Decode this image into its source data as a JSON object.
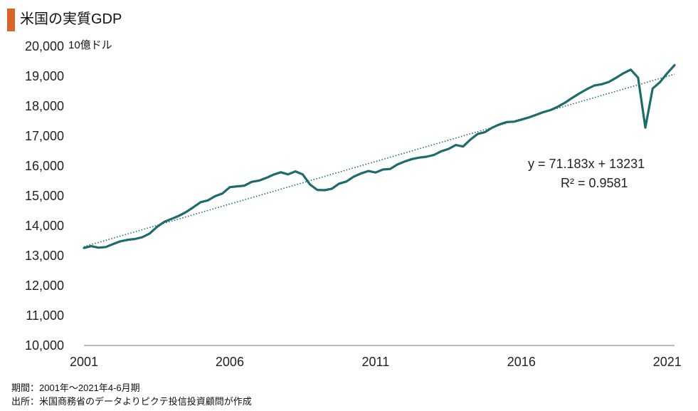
{
  "header": {
    "title": "米国の実質GDP",
    "accent_color": "#d8642a"
  },
  "unit_label": "10億ドル",
  "notes": {
    "period": "期間：2001年～2021年4-6月期",
    "source": "出所：米国商務省のデータよりピクテ投信投資顧問が作成"
  },
  "chart_data": {
    "type": "line",
    "title": "米国の実質GDP",
    "ylabel": "10億ドル",
    "xlabel": "",
    "ylim": [
      10000,
      20000
    ],
    "xlim": [
      2001,
      2021.25
    ],
    "y_ticks": [
      10000,
      11000,
      12000,
      13000,
      14000,
      15000,
      16000,
      17000,
      18000,
      19000,
      20000
    ],
    "y_tick_labels": [
      "10,000",
      "11,000",
      "12,000",
      "13,000",
      "14,000",
      "15,000",
      "16,000",
      "17,000",
      "18,000",
      "19,000",
      "20,000"
    ],
    "x_ticks": [
      2001,
      2006,
      2011,
      2016,
      2021
    ],
    "x_tick_labels": [
      "2001",
      "2006",
      "2011",
      "2016",
      "2021"
    ],
    "grid": false,
    "line_color": "#1d6b6b",
    "trend_color": "#1d6b6b",
    "trendline": {
      "equation": "y = 71.183x + 13231",
      "r_squared": "R² = 0.9581",
      "slope": 71.183,
      "intercept": 13231
    },
    "series": [
      {
        "x": [
          "2001Q1",
          "2001Q2",
          "2001Q3",
          "2001Q4",
          "2002Q1",
          "2002Q2",
          "2002Q3",
          "2002Q4",
          "2003Q1",
          "2003Q2",
          "2003Q3",
          "2003Q4",
          "2004Q1",
          "2004Q2",
          "2004Q3",
          "2004Q4",
          "2005Q1",
          "2005Q2",
          "2005Q3",
          "2005Q4",
          "2006Q1",
          "2006Q2",
          "2006Q3",
          "2006Q4",
          "2007Q1",
          "2007Q2",
          "2007Q3",
          "2007Q4",
          "2008Q1",
          "2008Q2",
          "2008Q3",
          "2008Q4",
          "2009Q1",
          "2009Q2",
          "2009Q3",
          "2009Q4",
          "2010Q1",
          "2010Q2",
          "2010Q3",
          "2010Q4",
          "2011Q1",
          "2011Q2",
          "2011Q3",
          "2011Q4",
          "2012Q1",
          "2012Q2",
          "2012Q3",
          "2012Q4",
          "2013Q1",
          "2013Q2",
          "2013Q3",
          "2013Q4",
          "2014Q1",
          "2014Q2",
          "2014Q3",
          "2014Q4",
          "2015Q1",
          "2015Q2",
          "2015Q3",
          "2015Q4",
          "2016Q1",
          "2016Q2",
          "2016Q3",
          "2016Q4",
          "2017Q1",
          "2017Q2",
          "2017Q3",
          "2017Q4",
          "2018Q1",
          "2018Q2",
          "2018Q3",
          "2018Q4",
          "2019Q1",
          "2019Q2",
          "2019Q3",
          "2019Q4",
          "2020Q1",
          "2020Q2",
          "2020Q3",
          "2020Q4",
          "2021Q1",
          "2021Q2"
        ],
        "values": [
          13260,
          13320,
          13270,
          13290,
          13390,
          13480,
          13530,
          13560,
          13620,
          13740,
          13960,
          14130,
          14230,
          14330,
          14460,
          14620,
          14790,
          14850,
          14990,
          15080,
          15290,
          15320,
          15340,
          15470,
          15510,
          15600,
          15710,
          15790,
          15720,
          15820,
          15720,
          15380,
          15200,
          15190,
          15240,
          15410,
          15480,
          15640,
          15750,
          15830,
          15780,
          15880,
          15900,
          16050,
          16150,
          16230,
          16280,
          16310,
          16370,
          16490,
          16570,
          16700,
          16650,
          16880,
          17070,
          17130,
          17280,
          17390,
          17470,
          17480,
          17550,
          17620,
          17710,
          17800,
          17870,
          17980,
          18120,
          18280,
          18430,
          18570,
          18690,
          18730,
          18810,
          18950,
          19100,
          19220,
          18950,
          17280,
          18590,
          18800,
          19100,
          19370
        ]
      }
    ]
  }
}
